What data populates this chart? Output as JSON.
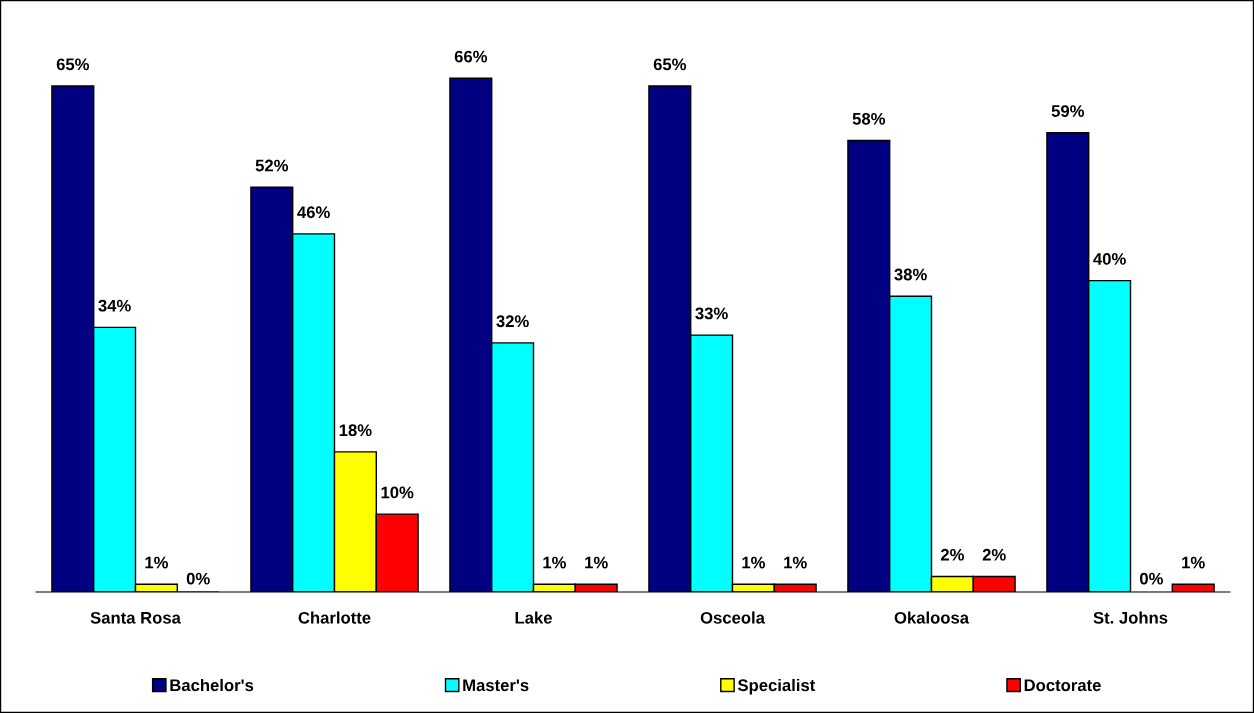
{
  "chart_data": {
    "type": "bar",
    "categories": [
      "Santa Rosa",
      "Charlotte",
      "Lake",
      "Osceola",
      "Okaloosa",
      "St. Johns"
    ],
    "series": [
      {
        "name": "Bachelor's",
        "color": "#000080",
        "values": [
          65,
          52,
          66,
          65,
          58,
          59
        ],
        "value_labels": [
          "65%",
          "52%",
          "66%",
          "65%",
          "58%",
          "59%"
        ]
      },
      {
        "name": "Master's",
        "color": "#00ffff",
        "values": [
          34,
          46,
          32,
          33,
          38,
          40
        ],
        "value_labels": [
          "34%",
          "46%",
          "32%",
          "33%",
          "38%",
          "40%"
        ]
      },
      {
        "name": "Specialist",
        "color": "#ffff00",
        "values": [
          1,
          18,
          1,
          1,
          2,
          0
        ],
        "value_labels": [
          "1%",
          "18%",
          "1%",
          "1%",
          "2%",
          "0%"
        ]
      },
      {
        "name": "Doctorate",
        "color": "#ff0000",
        "values": [
          0,
          10,
          1,
          1,
          2,
          1
        ],
        "value_labels": [
          "0%",
          "10%",
          "1%",
          "1%",
          "2%",
          "1%"
        ]
      }
    ],
    "legend": "bottom",
    "grid": false,
    "tick_labels": "x"
  }
}
